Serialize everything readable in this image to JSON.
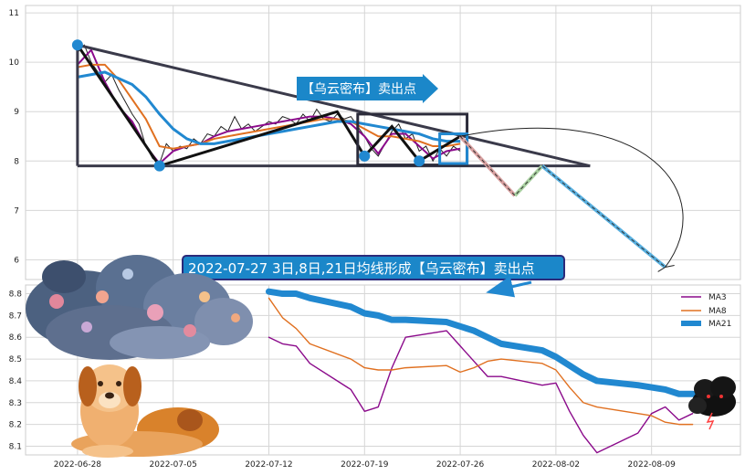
{
  "chart_data": [
    {
      "type": "line",
      "panel": "price-panel",
      "ylim": [
        5.6,
        11.15
      ],
      "y_ticks": [
        "6",
        "7",
        "8",
        "9",
        "10",
        "11"
      ],
      "grid": true,
      "price": [
        [
          0,
          10.2
        ],
        [
          0.5,
          10.35
        ],
        [
          1,
          10.0
        ],
        [
          1.5,
          9.8
        ],
        [
          2,
          9.6
        ],
        [
          2.5,
          9.75
        ],
        [
          3,
          9.45
        ],
        [
          3.5,
          9.2
        ],
        [
          4,
          8.95
        ],
        [
          4.5,
          8.75
        ],
        [
          5,
          8.3
        ],
        [
          5.5,
          8.05
        ],
        [
          6,
          7.95
        ],
        [
          6.5,
          8.35
        ],
        [
          7,
          8.2
        ],
        [
          7.5,
          8.3
        ],
        [
          8,
          8.25
        ],
        [
          8.5,
          8.45
        ],
        [
          9,
          8.35
        ],
        [
          9.5,
          8.55
        ],
        [
          10,
          8.5
        ],
        [
          10.5,
          8.7
        ],
        [
          11,
          8.6
        ],
        [
          11.5,
          8.9
        ],
        [
          12,
          8.65
        ],
        [
          12.5,
          8.75
        ],
        [
          13,
          8.6
        ],
        [
          13.5,
          8.7
        ],
        [
          14,
          8.8
        ],
        [
          14.5,
          8.75
        ],
        [
          15,
          8.9
        ],
        [
          15.5,
          8.85
        ],
        [
          16,
          8.75
        ],
        [
          16.5,
          8.95
        ],
        [
          17,
          8.8
        ],
        [
          17.5,
          9.05
        ],
        [
          18,
          8.85
        ],
        [
          18.5,
          8.8
        ],
        [
          19,
          8.95
        ],
        [
          19.5,
          8.85
        ],
        [
          20,
          8.9
        ],
        [
          20.5,
          8.7
        ],
        [
          21,
          8.5
        ],
        [
          21.5,
          8.25
        ],
        [
          22,
          8.1
        ],
        [
          22.5,
          8.35
        ],
        [
          23,
          8.6
        ],
        [
          23.5,
          8.75
        ],
        [
          24,
          8.45
        ],
        [
          24.5,
          8.55
        ],
        [
          25,
          8.2
        ],
        [
          25.5,
          8.3
        ],
        [
          26,
          8.0
        ],
        [
          26.5,
          8.25
        ],
        [
          27,
          8.1
        ],
        [
          27.5,
          8.3
        ],
        [
          28,
          8.2
        ]
      ],
      "ma3_price": [
        [
          0,
          9.95
        ],
        [
          1,
          10.25
        ],
        [
          2,
          9.6
        ],
        [
          3,
          9.1
        ],
        [
          4,
          8.8
        ],
        [
          5,
          8.3
        ],
        [
          6,
          7.95
        ],
        [
          7,
          8.2
        ],
        [
          8,
          8.3
        ],
        [
          9,
          8.35
        ],
        [
          10,
          8.5
        ],
        [
          11,
          8.6
        ],
        [
          12,
          8.65
        ],
        [
          13,
          8.7
        ],
        [
          14,
          8.75
        ],
        [
          15,
          8.8
        ],
        [
          16,
          8.85
        ],
        [
          17,
          8.9
        ],
        [
          18,
          8.9
        ],
        [
          19,
          8.85
        ],
        [
          20,
          8.75
        ],
        [
          21,
          8.5
        ],
        [
          22,
          8.15
        ],
        [
          23,
          8.55
        ],
        [
          24,
          8.55
        ],
        [
          25,
          8.3
        ],
        [
          26,
          8.05
        ],
        [
          27,
          8.2
        ],
        [
          28,
          8.25
        ]
      ],
      "ma8_price": [
        [
          0,
          9.9
        ],
        [
          1,
          9.95
        ],
        [
          2,
          9.95
        ],
        [
          3,
          9.65
        ],
        [
          4,
          9.25
        ],
        [
          5,
          8.85
        ],
        [
          6,
          8.3
        ],
        [
          7,
          8.25
        ],
        [
          8,
          8.3
        ],
        [
          9,
          8.35
        ],
        [
          10,
          8.45
        ],
        [
          11,
          8.5
        ],
        [
          12,
          8.55
        ],
        [
          13,
          8.6
        ],
        [
          14,
          8.65
        ],
        [
          15,
          8.7
        ],
        [
          16,
          8.75
        ],
        [
          17,
          8.8
        ],
        [
          18,
          8.85
        ],
        [
          19,
          8.85
        ],
        [
          20,
          8.8
        ],
        [
          21,
          8.65
        ],
        [
          22,
          8.5
        ],
        [
          23,
          8.5
        ],
        [
          24,
          8.45
        ],
        [
          25,
          8.4
        ],
        [
          26,
          8.3
        ],
        [
          27,
          8.3
        ],
        [
          28,
          8.35
        ]
      ],
      "ma21_price": [
        [
          0,
          9.7
        ],
        [
          2,
          9.8
        ],
        [
          4,
          9.55
        ],
        [
          5,
          9.3
        ],
        [
          6,
          8.95
        ],
        [
          7,
          8.65
        ],
        [
          8,
          8.45
        ],
        [
          9,
          8.35
        ],
        [
          10,
          8.35
        ],
        [
          11,
          8.4
        ],
        [
          12,
          8.45
        ],
        [
          13,
          8.5
        ],
        [
          14,
          8.55
        ],
        [
          15,
          8.6
        ],
        [
          16,
          8.65
        ],
        [
          17,
          8.7
        ],
        [
          18,
          8.75
        ],
        [
          19,
          8.8
        ],
        [
          20,
          8.8
        ],
        [
          21,
          8.75
        ],
        [
          22,
          8.7
        ],
        [
          23,
          8.65
        ],
        [
          24,
          8.6
        ],
        [
          25,
          8.55
        ],
        [
          26,
          8.45
        ],
        [
          27,
          8.4
        ],
        [
          28,
          8.4
        ]
      ],
      "zigzag": [
        [
          0,
          10.35
        ],
        [
          6,
          7.9
        ],
        [
          19,
          9.0
        ],
        [
          21,
          8.1
        ],
        [
          23,
          8.7
        ],
        [
          25,
          8.0
        ],
        [
          28,
          8.5
        ]
      ],
      "trend_upper": [
        [
          0,
          10.35
        ],
        [
          37.5,
          7.9
        ]
      ],
      "support": [
        [
          0,
          7.9
        ],
        [
          37.5,
          7.9
        ]
      ],
      "left_vertical": [
        [
          0,
          10.35
        ],
        [
          0,
          7.9
        ]
      ],
      "box_right": {
        "x": [
          20.5,
          28.5
        ],
        "y": [
          7.92,
          8.95
        ]
      },
      "box_small": {
        "x": [
          26.5,
          28.5
        ],
        "y": [
          7.95,
          8.55
        ]
      },
      "projection": [
        [
          28,
          8.5
        ],
        [
          32,
          7.3
        ],
        [
          34,
          7.9
        ],
        [
          43,
          5.85
        ]
      ],
      "arc": {
        "from": [
          28,
          8.5
        ],
        "to": [
          43,
          5.85
        ]
      },
      "pivot_points": [
        [
          0,
          10.35
        ],
        [
          6,
          7.9
        ],
        [
          21,
          8.1
        ],
        [
          25,
          8.0
        ]
      ],
      "callout": "【乌云密布】卖出点",
      "callout_color": "#1b87c9"
    },
    {
      "type": "line",
      "panel": "ma-panel",
      "x_ticks": [
        "2022-06-28",
        "2022-07-05",
        "2022-07-12",
        "2022-07-19",
        "2022-07-26",
        "2022-08-02",
        "2022-08-09"
      ],
      "ylim": [
        8.06,
        8.84
      ],
      "y_ticks": [
        "8.1",
        "8.2",
        "8.3",
        "8.4",
        "8.5",
        "8.6",
        "8.7",
        "8.8"
      ],
      "grid": true,
      "legend": "top-right",
      "series": [
        {
          "name": "MA3",
          "color": "#8b0a8b",
          "x": [
            "2022-07-12",
            "2022-07-13",
            "2022-07-14",
            "2022-07-15",
            "2022-07-18",
            "2022-07-19",
            "2022-07-20",
            "2022-07-21",
            "2022-07-22",
            "2022-07-25",
            "2022-07-26",
            "2022-07-27",
            "2022-07-28",
            "2022-07-29",
            "2022-08-01",
            "2022-08-02",
            "2022-08-03",
            "2022-08-04",
            "2022-08-05",
            "2022-08-08",
            "2022-08-09",
            "2022-08-10",
            "2022-08-11",
            "2022-08-12"
          ],
          "values": [
            8.6,
            8.57,
            8.56,
            8.48,
            8.36,
            8.26,
            8.28,
            8.46,
            8.6,
            8.63,
            8.56,
            8.49,
            8.42,
            8.42,
            8.38,
            8.39,
            8.26,
            8.15,
            8.07,
            8.16,
            8.25,
            8.28,
            8.22,
            8.25
          ]
        },
        {
          "name": "MA8",
          "color": "#e07020",
          "x": [
            "2022-07-12",
            "2022-07-13",
            "2022-07-14",
            "2022-07-15",
            "2022-07-18",
            "2022-07-19",
            "2022-07-20",
            "2022-07-21",
            "2022-07-22",
            "2022-07-25",
            "2022-07-26",
            "2022-07-27",
            "2022-07-28",
            "2022-07-29",
            "2022-08-01",
            "2022-08-02",
            "2022-08-03",
            "2022-08-04",
            "2022-08-05",
            "2022-08-08",
            "2022-08-09",
            "2022-08-10",
            "2022-08-11",
            "2022-08-12"
          ],
          "values": [
            8.78,
            8.69,
            8.64,
            8.57,
            8.5,
            8.46,
            8.45,
            8.45,
            8.46,
            8.47,
            8.44,
            8.46,
            8.49,
            8.5,
            8.48,
            8.45,
            8.37,
            8.3,
            8.28,
            8.25,
            8.24,
            8.21,
            8.2,
            8.2
          ]
        },
        {
          "name": "MA21",
          "color": "#2188d0",
          "x": [
            "2022-07-12",
            "2022-07-13",
            "2022-07-14",
            "2022-07-15",
            "2022-07-18",
            "2022-07-19",
            "2022-07-20",
            "2022-07-21",
            "2022-07-22",
            "2022-07-25",
            "2022-07-26",
            "2022-07-27",
            "2022-07-28",
            "2022-07-29",
            "2022-08-01",
            "2022-08-02",
            "2022-08-03",
            "2022-08-04",
            "2022-08-05",
            "2022-08-08",
            "2022-08-09",
            "2022-08-10",
            "2022-08-11",
            "2022-08-12"
          ],
          "values": [
            8.81,
            8.8,
            8.8,
            8.78,
            8.74,
            8.71,
            8.7,
            8.68,
            8.68,
            8.67,
            8.65,
            8.63,
            8.6,
            8.57,
            8.54,
            8.51,
            8.47,
            8.43,
            8.4,
            8.38,
            8.37,
            8.36,
            8.34,
            8.34
          ]
        }
      ],
      "banner": "2022-07-27 3日,8日,21日均线形成【乌云密布】卖出点",
      "banner_color": "#1b87c9"
    }
  ],
  "decorations": {
    "cloud": "storm-cloud-illustration",
    "dog": "dog-illustration",
    "dark_cloud": "dark-storm-cloud-icon"
  }
}
